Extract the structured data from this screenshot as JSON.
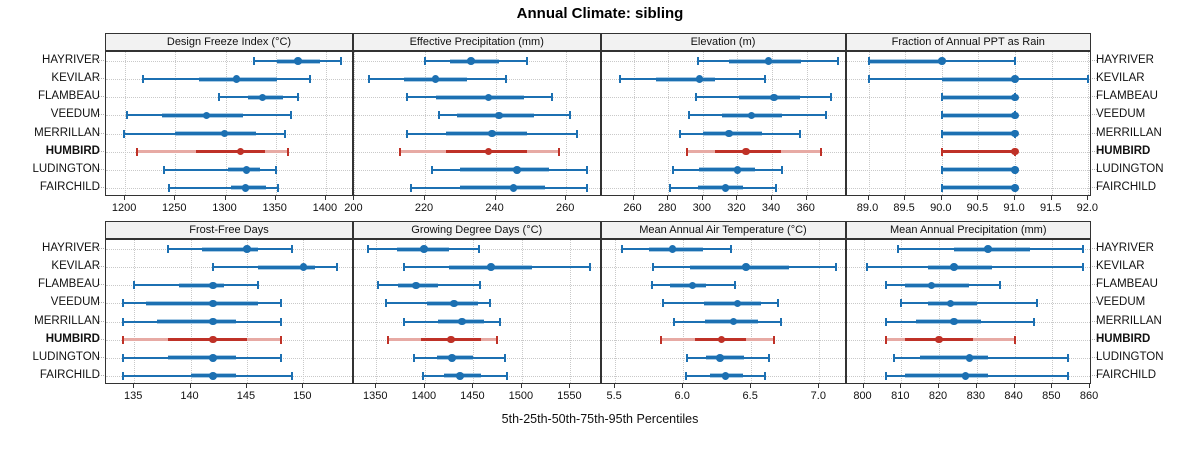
{
  "title": "Annual Climate: sibling",
  "footer": "5th-25th-50th-75th-95th Percentiles",
  "colors": {
    "series": "#1c70b2",
    "series_light": "#a9cbe5",
    "highlight": "#bf3127",
    "highlight_light": "#e7aaa4",
    "grid": "#c9c9c9",
    "strip_bg": "#f2f2f2",
    "panel_border": "#333333",
    "background": "#ffffff"
  },
  "chart_data": {
    "type": "dotplot",
    "title": "Annual Climate: sibling",
    "xlabel": "5th-25th-50th-75th-95th Percentiles",
    "legend_position": "none",
    "grid": "dotted",
    "percentiles": [
      5,
      25,
      50,
      75,
      95
    ],
    "stations": [
      "HAYRIVER",
      "KEVILAR",
      "FLAMBEAU",
      "VEEDUM",
      "MERRILLAN",
      "HUMBIRD",
      "LUDINGTON",
      "FAIRCHILD"
    ],
    "highlight_station": "HUMBIRD",
    "panels": [
      {
        "id": "design-freeze-index",
        "title": "Design Freeze Index (°C)",
        "xlim": [
          1181,
          1428
        ],
        "ticks": [
          1200,
          1250,
          1300,
          1350,
          1400
        ],
        "tick_labels": [
          "1200",
          "1250",
          "1300",
          "1350",
          "1400"
        ],
        "series": [
          {
            "station": "HAYRIVER",
            "values": [
              1328,
              1351,
              1372,
              1394,
              1415
            ]
          },
          {
            "station": "KEVILAR",
            "values": [
              1218,
              1274,
              1311,
              1351,
              1384
            ]
          },
          {
            "station": "FLAMBEAU",
            "values": [
              1293,
              1322,
              1337,
              1357,
              1372
            ]
          },
          {
            "station": "VEEDUM",
            "values": [
              1202,
              1237,
              1281,
              1318,
              1365
            ]
          },
          {
            "station": "MERRILLAN",
            "values": [
              1199,
              1250,
              1299,
              1330,
              1359
            ]
          },
          {
            "station": "HUMBIRD",
            "values": [
              1212,
              1271,
              1315,
              1339,
              1362
            ]
          },
          {
            "station": "LUDINGTON",
            "values": [
              1239,
              1302,
              1321,
              1334,
              1350
            ]
          },
          {
            "station": "FAIRCHILD",
            "values": [
              1244,
              1305,
              1320,
              1340,
              1352
            ]
          }
        ]
      },
      {
        "id": "effective-precipitation",
        "title": "Effective Precipitation (mm)",
        "xlim": [
          199.9,
          270
        ],
        "ticks": [
          200,
          220,
          240,
          260
        ],
        "tick_labels": [
          "200",
          "220",
          "240",
          "260"
        ],
        "series": [
          {
            "station": "HAYRIVER",
            "values": [
              220,
              227,
              233,
              241,
              249
            ]
          },
          {
            "station": "KEVILAR",
            "values": [
              204,
              214,
              223,
              232,
              243
            ]
          },
          {
            "station": "FLAMBEAU",
            "values": [
              215,
              223,
              238,
              248,
              256
            ]
          },
          {
            "station": "VEEDUM",
            "values": [
              224,
              229,
              241,
              251,
              261
            ]
          },
          {
            "station": "MERRILLAN",
            "values": [
              215,
              226,
              239,
              249,
              263
            ]
          },
          {
            "station": "HUMBIRD",
            "values": [
              213,
              226,
              238,
              249,
              258
            ]
          },
          {
            "station": "LUDINGTON",
            "values": [
              222,
              230,
              246,
              255,
              266
            ]
          },
          {
            "station": "FAIRCHILD",
            "values": [
              216,
              230,
              245,
              254,
              266
            ]
          }
        ]
      },
      {
        "id": "elevation",
        "title": "Elevation (m)",
        "xlim": [
          241.5,
          383
        ],
        "ticks": [
          260,
          280,
          300,
          320,
          340,
          360
        ],
        "tick_labels": [
          "260",
          "280",
          "300",
          "320",
          "340",
          "360"
        ],
        "series": [
          {
            "station": "HAYRIVER",
            "values": [
              297,
              315,
              338,
              357,
              378
            ]
          },
          {
            "station": "KEVILAR",
            "values": [
              252,
              273,
              298,
              307,
              336
            ]
          },
          {
            "station": "FLAMBEAU",
            "values": [
              296,
              321,
              341,
              356,
              374
            ]
          },
          {
            "station": "VEEDUM",
            "values": [
              292,
              311,
              328,
              346,
              371
            ]
          },
          {
            "station": "MERRILLAN",
            "values": [
              287,
              300,
              315,
              334,
              356
            ]
          },
          {
            "station": "HUMBIRD",
            "values": [
              291,
              307,
              325,
              345,
              368
            ]
          },
          {
            "station": "LUDINGTON",
            "values": [
              283,
              298,
              320,
              330,
              346
            ]
          },
          {
            "station": "FAIRCHILD",
            "values": [
              281,
              297,
              313,
              323,
              342
            ]
          }
        ]
      },
      {
        "id": "fraction-annual-ppt-rain",
        "title": "Fraction of Annual PPT as Rain",
        "xlim": [
          88.7,
          92.05
        ],
        "ticks": [
          89.0,
          89.5,
          90.0,
          90.5,
          91.0,
          91.5,
          92.0
        ],
        "tick_labels": [
          "89.0",
          "89.5",
          "90.0",
          "90.5",
          "91.0",
          "91.5",
          "92.0"
        ],
        "series": [
          {
            "station": "HAYRIVER",
            "values": [
              89,
              89,
              90,
              90,
              91
            ]
          },
          {
            "station": "KEVILAR",
            "values": [
              89,
              90,
              91,
              91,
              92
            ]
          },
          {
            "station": "FLAMBEAU",
            "values": [
              90,
              90,
              91,
              91,
              91
            ]
          },
          {
            "station": "VEEDUM",
            "values": [
              90,
              90,
              91,
              91,
              91
            ]
          },
          {
            "station": "MERRILLAN",
            "values": [
              90,
              90,
              91,
              91,
              91
            ]
          },
          {
            "station": "HUMBIRD",
            "values": [
              90,
              90,
              91,
              91,
              91
            ]
          },
          {
            "station": "LUDINGTON",
            "values": [
              90,
              90,
              91,
              91,
              91
            ]
          },
          {
            "station": "FAIRCHILD",
            "values": [
              90,
              90,
              91,
              91,
              91
            ]
          }
        ]
      },
      {
        "id": "frost-free-days",
        "title": "Frost-Free Days",
        "xlim": [
          132.5,
          154.5
        ],
        "ticks": [
          135,
          140,
          145,
          150
        ],
        "tick_labels": [
          "135",
          "140",
          "145",
          "150"
        ],
        "series": [
          {
            "station": "HAYRIVER",
            "values": [
              138,
              141,
              145,
              146,
              149
            ]
          },
          {
            "station": "KEVILAR",
            "values": [
              142,
              146,
              150,
              151,
              153
            ]
          },
          {
            "station": "FLAMBEAU",
            "values": [
              135,
              139,
              142,
              143,
              146
            ]
          },
          {
            "station": "VEEDUM",
            "values": [
              134,
              136,
              142,
              146,
              148
            ]
          },
          {
            "station": "MERRILLAN",
            "values": [
              134,
              137,
              142,
              144,
              148
            ]
          },
          {
            "station": "HUMBIRD",
            "values": [
              134,
              138,
              142,
              145,
              148
            ]
          },
          {
            "station": "LUDINGTON",
            "values": [
              134,
              138,
              142,
              144,
              148
            ]
          },
          {
            "station": "FAIRCHILD",
            "values": [
              134,
              140,
              142,
              144,
              149
            ]
          }
        ]
      },
      {
        "id": "growing-degree-days",
        "title": "Growing Degree Days (°C)",
        "xlim": [
          1327,
          1582
        ],
        "ticks": [
          1350,
          1400,
          1450,
          1500,
          1550
        ],
        "tick_labels": [
          "1350",
          "1400",
          "1450",
          "1500",
          "1550"
        ],
        "series": [
          {
            "station": "HAYRIVER",
            "values": [
              1341,
              1371,
              1399,
              1425,
              1456
            ]
          },
          {
            "station": "KEVILAR",
            "values": [
              1378,
              1425,
              1468,
              1510,
              1570
            ]
          },
          {
            "station": "FLAMBEAU",
            "values": [
              1352,
              1372,
              1391,
              1414,
              1457
            ]
          },
          {
            "station": "VEEDUM",
            "values": [
              1360,
              1402,
              1430,
              1455,
              1467
            ]
          },
          {
            "station": "MERRILLAN",
            "values": [
              1378,
              1414,
              1438,
              1461,
              1477
            ]
          },
          {
            "station": "HUMBIRD",
            "values": [
              1362,
              1396,
              1427,
              1458,
              1474
            ]
          },
          {
            "station": "LUDINGTON",
            "values": [
              1389,
              1412,
              1428,
              1450,
              1483
            ]
          },
          {
            "station": "FAIRCHILD",
            "values": [
              1398,
              1420,
              1436,
              1458,
              1485
            ]
          }
        ]
      },
      {
        "id": "mean-annual-air-temperature",
        "title": "Mean Annual Air Temperature (°C)",
        "xlim": [
          5.4,
          7.2
        ],
        "ticks": [
          5.5,
          6.0,
          6.5,
          7.0
        ],
        "tick_labels": [
          "5.5",
          "6.0",
          "6.5",
          "7.0"
        ],
        "series": [
          {
            "station": "HAYRIVER",
            "values": [
              5.55,
              5.75,
              5.92,
              6.15,
              6.35
            ]
          },
          {
            "station": "KEVILAR",
            "values": [
              5.78,
              6.05,
              6.46,
              6.78,
              7.12
            ]
          },
          {
            "station": "FLAMBEAU",
            "values": [
              5.77,
              5.9,
              6.07,
              6.17,
              6.38
            ]
          },
          {
            "station": "VEEDUM",
            "values": [
              5.85,
              6.15,
              6.4,
              6.57,
              6.7
            ]
          },
          {
            "station": "MERRILLAN",
            "values": [
              5.93,
              6.16,
              6.37,
              6.55,
              6.72
            ]
          },
          {
            "station": "HUMBIRD",
            "values": [
              5.84,
              6.09,
              6.28,
              6.46,
              6.67
            ]
          },
          {
            "station": "LUDINGTON",
            "values": [
              6.03,
              6.17,
              6.27,
              6.45,
              6.63
            ]
          },
          {
            "station": "FAIRCHILD",
            "values": [
              6.02,
              6.2,
              6.31,
              6.44,
              6.6
            ]
          }
        ]
      },
      {
        "id": "mean-annual-precipitation",
        "title": "Mean Annual Precipitation (mm)",
        "xlim": [
          795.5,
          860.5
        ],
        "ticks": [
          800,
          810,
          820,
          830,
          840,
          850,
          860
        ],
        "tick_labels": [
          "800",
          "810",
          "820",
          "830",
          "840",
          "850",
          "860"
        ],
        "series": [
          {
            "station": "HAYRIVER",
            "values": [
              809,
              824,
              833,
              844,
              858
            ]
          },
          {
            "station": "KEVILAR",
            "values": [
              801,
              817,
              824,
              834,
              858
            ]
          },
          {
            "station": "FLAMBEAU",
            "values": [
              806,
              811,
              818,
              828,
              836
            ]
          },
          {
            "station": "VEEDUM",
            "values": [
              810,
              817,
              823,
              830,
              846
            ]
          },
          {
            "station": "MERRILLAN",
            "values": [
              806,
              814,
              824,
              831,
              845
            ]
          },
          {
            "station": "HUMBIRD",
            "values": [
              806,
              811,
              820,
              829,
              840
            ]
          },
          {
            "station": "LUDINGTON",
            "values": [
              808,
              815,
              828,
              833,
              854
            ]
          },
          {
            "station": "FAIRCHILD",
            "values": [
              806,
              811,
              827,
              833,
              854
            ]
          }
        ]
      }
    ]
  }
}
